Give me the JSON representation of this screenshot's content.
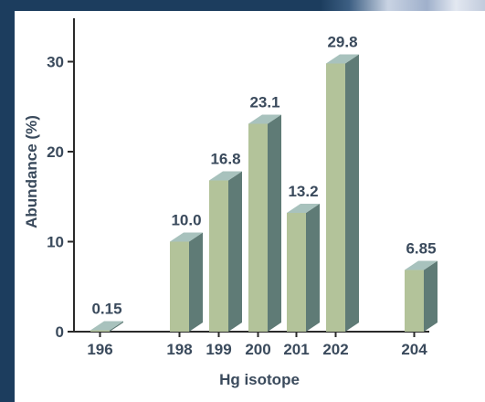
{
  "chart_data": {
    "type": "bar",
    "style": "3d",
    "categories": [
      "196",
      "198",
      "199",
      "200",
      "201",
      "202",
      "204"
    ],
    "values": [
      0.15,
      10.0,
      16.8,
      23.1,
      13.2,
      29.8,
      6.85
    ],
    "value_labels": [
      "0.15",
      "10.0",
      "16.8",
      "23.1",
      "13.2",
      "29.8",
      "6.85"
    ],
    "xlabel": "Hg isotope",
    "ylabel": "Abundance (%)",
    "yticks": [
      "0",
      "10",
      "20",
      "30"
    ],
    "ylim": [
      0,
      30
    ],
    "grid": false,
    "colors": {
      "bar_front": "#b3c39a",
      "bar_side": "#5f7b76",
      "bar_top": "#a8c2bd",
      "axis": "#2a2a2a",
      "text": "#3a4a5c",
      "background": "#ffffff",
      "frame": "#1c3d5e"
    }
  }
}
